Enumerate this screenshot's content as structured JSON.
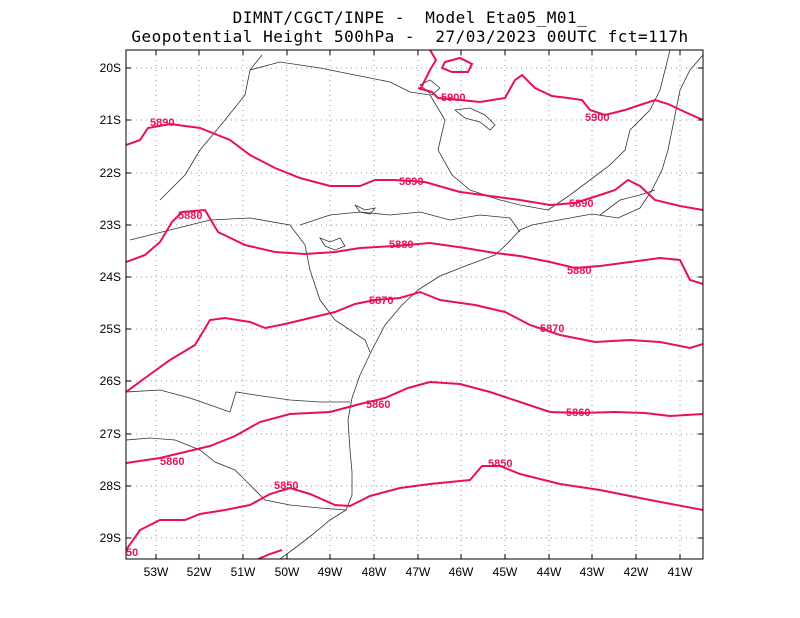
{
  "header": {
    "title_line1": "DIMNT/CGCT/INPE -  Model Eta05_M01_",
    "title_line2": "Geopotential Height 500hPa -  27/03/2023 00UTC fct=117h"
  },
  "map": {
    "lat_labels": [
      "20S",
      "21S",
      "22S",
      "23S",
      "24S",
      "25S",
      "26S",
      "27S",
      "28S",
      "29S"
    ],
    "lon_labels": [
      "53W",
      "52W",
      "51W",
      "50W",
      "49W",
      "48W",
      "47W",
      "46W",
      "45W",
      "44W",
      "43W",
      "42W",
      "41W"
    ],
    "contour_color": "#e8105a",
    "contour_labels": [
      "5900",
      "5900",
      "5890",
      "5890",
      "5890",
      "5880",
      "5880",
      "5880",
      "5870",
      "5870",
      "5860",
      "5860",
      "5860",
      "5850",
      "5850",
      "50"
    ]
  }
}
